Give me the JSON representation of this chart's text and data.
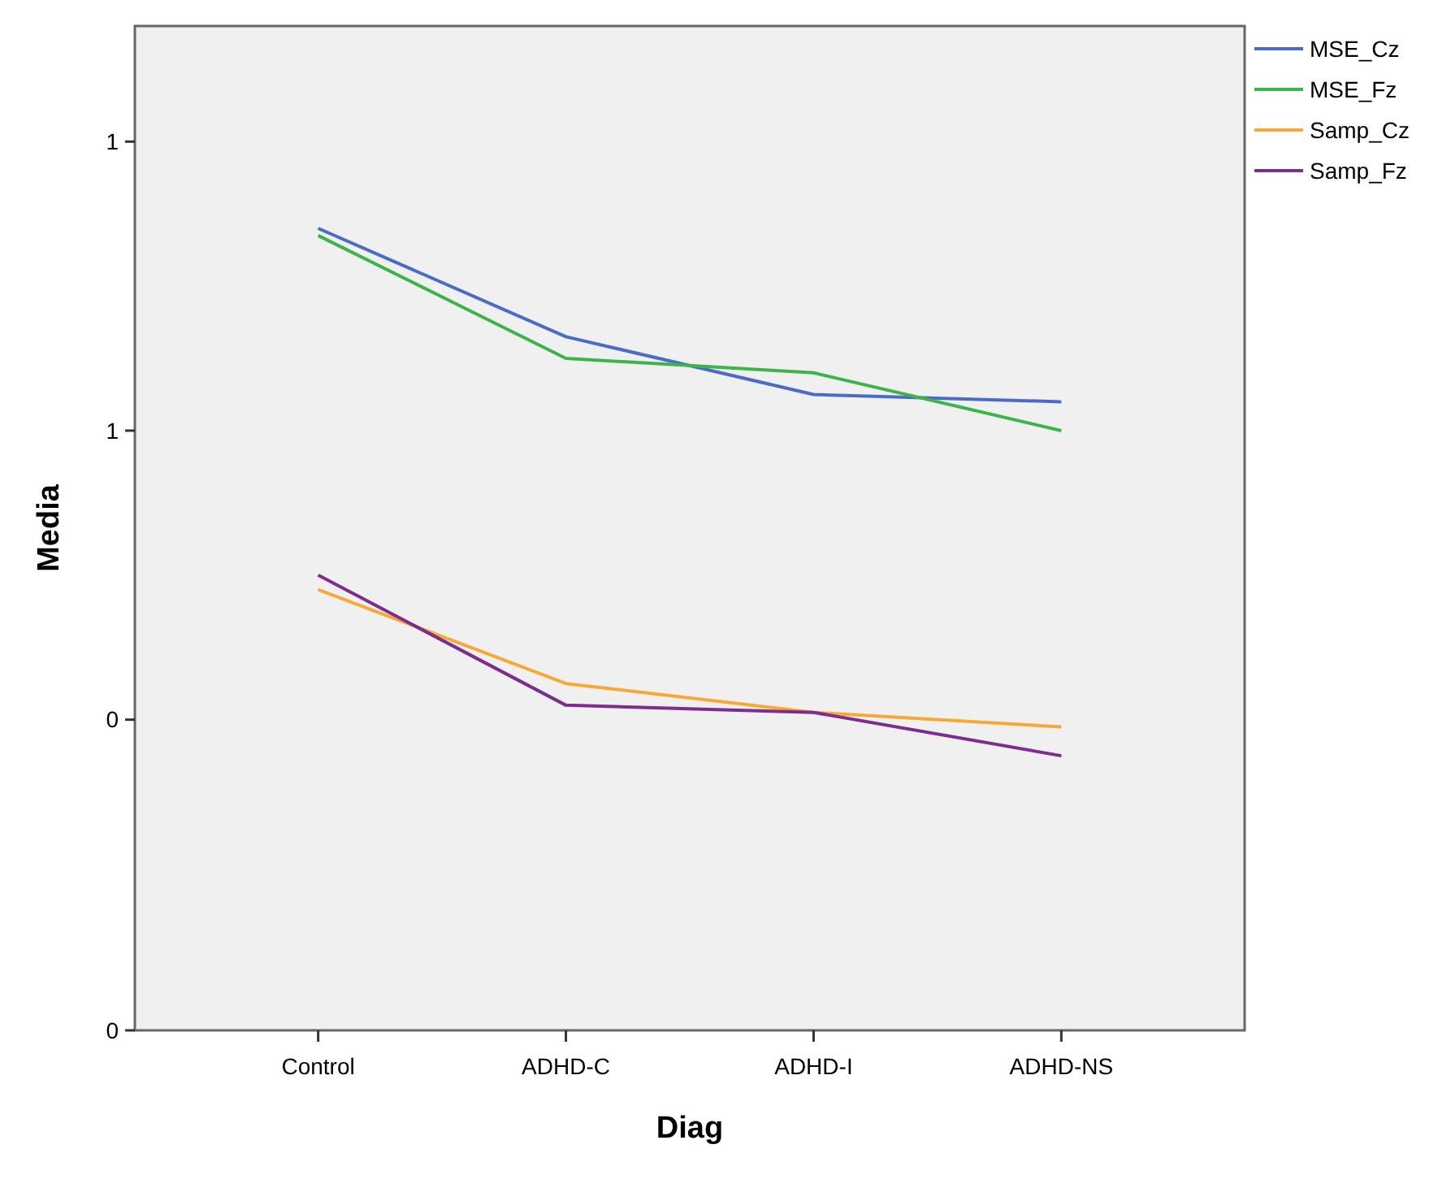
{
  "chart_data": {
    "type": "line",
    "xlabel": "Diag",
    "ylabel": "Media",
    "categories": [
      "Control",
      "ADHD-C",
      "ADHD-I",
      "ADHD-NS"
    ],
    "series": [
      {
        "name": "MSE_Cz",
        "color": "#4a6cc4",
        "values": [
          1.08,
          0.93,
          0.85,
          0.84
        ]
      },
      {
        "name": "MSE_Fz",
        "color": "#3cb44a",
        "values": [
          1.07,
          0.9,
          0.88,
          0.8
        ]
      },
      {
        "name": "Samp_Cz",
        "color": "#f7a837",
        "values": [
          0.58,
          0.45,
          0.41,
          0.39
        ]
      },
      {
        "name": "Samp_Fz",
        "color": "#7e2c8e",
        "values": [
          0.6,
          0.42,
          0.41,
          0.35
        ]
      }
    ],
    "ylim": [
      -0.03,
      1.36
    ],
    "yticks": [
      {
        "value": -0.03,
        "label": "0"
      },
      {
        "value": 0.4,
        "label": "0"
      },
      {
        "value": 0.8,
        "label": "1"
      },
      {
        "value": 1.2,
        "label": "1"
      }
    ],
    "legend": "top right",
    "grid": false,
    "marker": "none",
    "line_style": "solid"
  }
}
